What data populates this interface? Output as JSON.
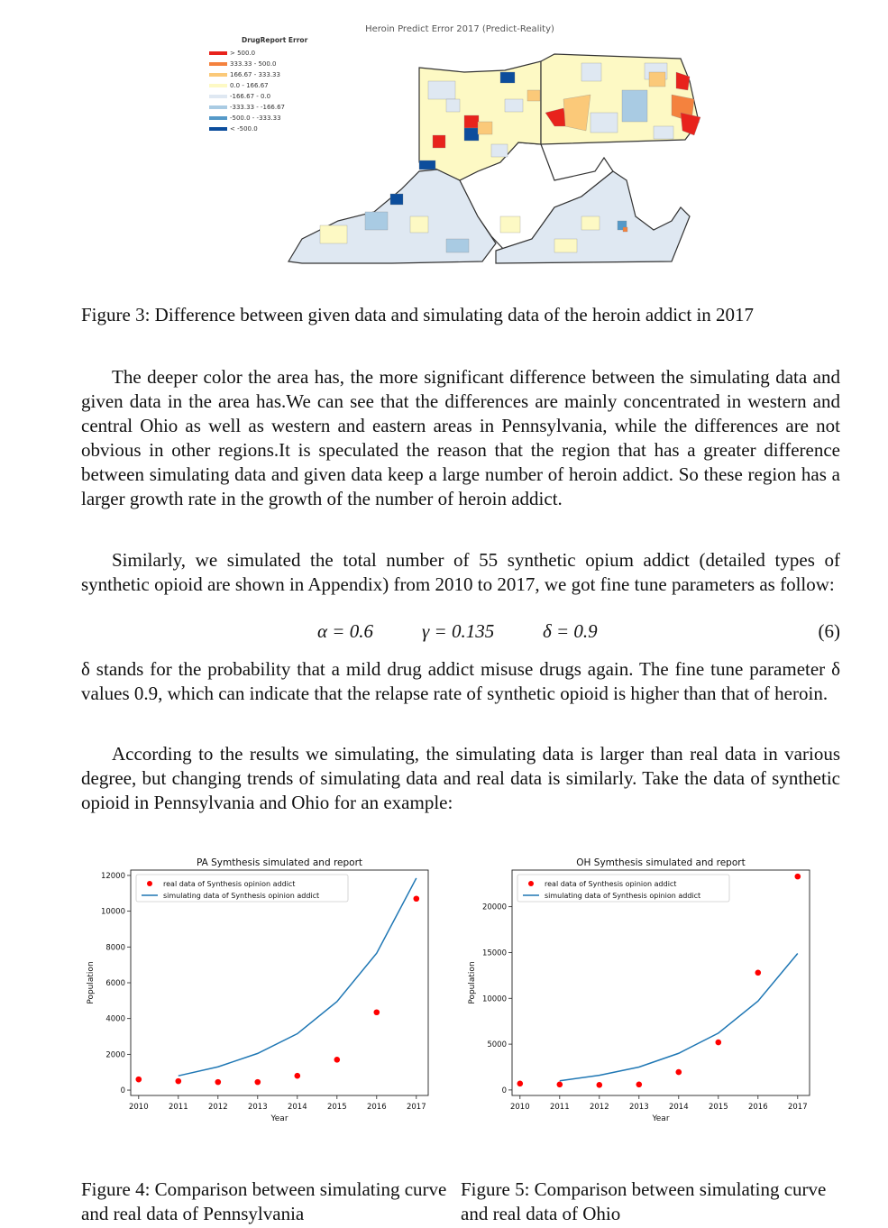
{
  "map": {
    "title": "Heroin Predict Error 2017 (Predict-Reality)",
    "legend_title": "DrugReport Error",
    "legend": [
      {
        "label": "> 500.0",
        "color": "#e8231c"
      },
      {
        "label": "333.33 - 500.0",
        "color": "#f4823e"
      },
      {
        "label": "166.67 - 333.33",
        "color": "#fbc979"
      },
      {
        "label": "0.0 - 166.67",
        "color": "#fdf9c4"
      },
      {
        "label": "-166.67 - 0.0",
        "color": "#dfe8f2"
      },
      {
        "label": "-333.33 - -166.67",
        "color": "#a9cbe3"
      },
      {
        "label": "-500.0 - -333.33",
        "color": "#5599c8"
      },
      {
        "label": "< -500.0",
        "color": "#0c4d9c"
      }
    ]
  },
  "figure3_caption": "Figure 3: Difference between given data and simulating data of the heroin addict in 2017",
  "paragraphs": [
    "The deeper color the area has, the more significant difference between the simulating data and given data in the area has.We can see that the differences are mainly concentrated in western and central Ohio as well as western and eastern areas in Pennsylvania, while the differences are not obvious in other regions.It is speculated the reason that the region that has a greater difference between simulating data and given data keep a large number of heroin addict. So these region has a larger growth rate in the growth of the number of heroin addict.",
    "Similarly, we simulated the total number of 55 synthetic opium addict (detailed types of synthetic opioid are shown in Appendix) from 2010 to 2017, we got fine tune parameters as follow:"
  ],
  "equation": {
    "alpha": "α = 0.6",
    "gamma": "γ = 0.135",
    "delta": "δ = 0.9",
    "number": "(6)"
  },
  "paragraph_delta": "δ stands for the probability that a mild drug addict misuse drugs again. The fine tune parameter δ values 0.9, which can indicate that the relapse rate of synthetic opioid is higher than that of heroin.",
  "paragraph_results": "According to the results we simulating, the simulating data is larger than real data in various degree, but changing trends of simulating data and real data is similarly. Take the data of synthetic opioid in Pennsylvania and Ohio for an example:",
  "chart_data": [
    {
      "type": "line",
      "title": "PA Symthesis simulated and report",
      "xlabel": "Year",
      "ylabel": "Population",
      "x_ticks": [
        2010,
        2011,
        2012,
        2013,
        2014,
        2015,
        2016,
        2017
      ],
      "y_ticks": [
        0,
        2000,
        4000,
        6000,
        8000,
        10000,
        12000
      ],
      "xlim": [
        2009.8,
        2017.3
      ],
      "ylim": [
        -300,
        12300
      ],
      "legend_position": "top-left",
      "series": [
        {
          "name": "real data of Synthesis opinion addict",
          "kind": "scatter",
          "color": "#ff0000",
          "x": [
            2010,
            2011,
            2012,
            2013,
            2014,
            2015,
            2016,
            2017
          ],
          "values": [
            600,
            500,
            450,
            450,
            800,
            1700,
            4350,
            10700
          ]
        },
        {
          "name": "simulating data of Synthesis opinion addict",
          "kind": "line",
          "color": "#1f77b4",
          "x": [
            2011,
            2012,
            2013,
            2014,
            2015,
            2016,
            2017
          ],
          "values": [
            800,
            1300,
            2050,
            3150,
            4950,
            7650,
            11850
          ]
        }
      ]
    },
    {
      "type": "line",
      "title": "OH Symthesis simulated and report",
      "xlabel": "Year",
      "ylabel": "Population",
      "x_ticks": [
        2010,
        2011,
        2012,
        2013,
        2014,
        2015,
        2016,
        2017
      ],
      "y_ticks": [
        0,
        5000,
        10000,
        15000,
        20000
      ],
      "xlim": [
        2009.8,
        2017.3
      ],
      "ylim": [
        -600,
        24000
      ],
      "legend_position": "top-left",
      "series": [
        {
          "name": "real data of Synthesis opinion addict",
          "kind": "scatter",
          "color": "#ff0000",
          "x": [
            2010,
            2011,
            2012,
            2013,
            2014,
            2015,
            2016,
            2017
          ],
          "values": [
            700,
            600,
            550,
            600,
            1950,
            5200,
            12800,
            23300
          ]
        },
        {
          "name": "simulating data of Synthesis opinion addict",
          "kind": "line",
          "color": "#1f77b4",
          "x": [
            2011,
            2012,
            2013,
            2014,
            2015,
            2016,
            2017
          ],
          "values": [
            1000,
            1600,
            2500,
            4000,
            6200,
            9700,
            14900
          ]
        }
      ]
    }
  ],
  "figure4_caption": "Figure 4: Comparison between simulating curve and real data of Pennsylvania",
  "figure5_caption": "Figure 5: Comparison between simulating curve and real data of Ohio"
}
